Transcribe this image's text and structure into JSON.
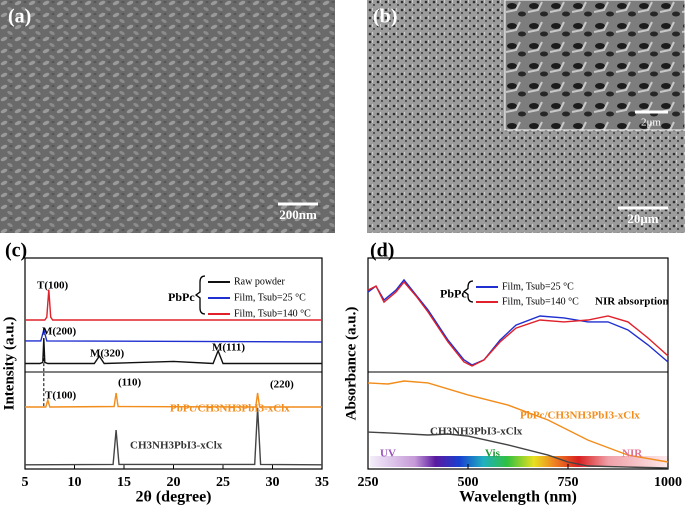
{
  "images": [
    {
      "label": "(a)",
      "scale_bar": "200nm"
    },
    {
      "label": "(b)",
      "scale_bar": "20μm",
      "inset_scale_bar": "2μm"
    }
  ],
  "chart_data": [
    {
      "type": "line",
      "label": "(c)",
      "x_label": "2θ (degree)",
      "y_label": "Intensity (a.u.)",
      "xlim": [
        5,
        35
      ],
      "xticks": [
        5,
        10,
        15,
        20,
        25,
        30,
        35
      ],
      "ylim": [
        0,
        100
      ],
      "legend_title": "PbPc",
      "series": [
        {
          "name": "Raw powder",
          "color": "#111111",
          "x": [
            5,
            6.5,
            6.8,
            6.9,
            7.0,
            7.3,
            12,
            12.5,
            13,
            20,
            24,
            24.5,
            25,
            35
          ],
          "values": [
            50,
            50,
            50.5,
            62,
            50.5,
            50,
            50,
            53.5,
            50,
            51,
            50,
            56,
            50,
            50
          ]
        },
        {
          "name": "Film, Tsub=25 °C",
          "color": "#1f2fd0",
          "x": [
            5,
            6.6,
            6.9,
            7.2,
            35
          ],
          "values": [
            60.7,
            60.7,
            66,
            60.7,
            60.2
          ]
        },
        {
          "name": "Film, Tsub=140 °C",
          "color": "#e0202a",
          "x": [
            5,
            7.0,
            7.2,
            7.4,
            7.6,
            7.8,
            35
          ],
          "values": [
            70.6,
            70.6,
            72,
            85,
            72,
            70.6,
            70.6
          ]
        },
        {
          "color": "#f28c1a",
          "x": [
            5,
            7.1,
            7.3,
            7.5,
            14,
            14.2,
            14.4,
            28.3,
            28.5,
            28.7,
            35
          ],
          "values": [
            29.4,
            29.4,
            32.7,
            29.4,
            29.6,
            36,
            29.6,
            29.4,
            36,
            29.4,
            29.4
          ]
        },
        {
          "color": "#444444",
          "x": [
            5,
            13.9,
            14.2,
            14.5,
            28.2,
            28.5,
            28.8,
            35
          ],
          "values": [
            2,
            2.2,
            18.5,
            2.2,
            2.2,
            29,
            2.2,
            2
          ]
        }
      ],
      "annotations": [
        "T(100)",
        "M(200)",
        "M(320)",
        "M(111)",
        "(110)",
        "(220)",
        "T(100)",
        "PbPc/CH3NH3PbI3-xClx",
        "CH3NH3PbI3-xClx"
      ]
    },
    {
      "type": "line",
      "label": "(d)",
      "x_label": "Wavelength (nm)",
      "y_label": "Absorbance (a.u.)",
      "xlim": [
        250,
        1000
      ],
      "xticks": [
        250,
        500,
        750,
        1000
      ],
      "ylim": [
        0,
        100
      ],
      "legend_title": "PbPc",
      "series": [
        {
          "name": "Film, Tsub=25 °C",
          "color": "#1f2fd0",
          "x": [
            250,
            270,
            290,
            320,
            340,
            370,
            400,
            450,
            490,
            510,
            540,
            580,
            620,
            680,
            740,
            800,
            850,
            900,
            950,
            1000
          ],
          "values": [
            83.9,
            86.7,
            80.1,
            84.8,
            89.6,
            82.5,
            75.4,
            61.1,
            51.7,
            49.3,
            51.7,
            61.1,
            68.2,
            72.5,
            71.6,
            69.7,
            69.7,
            65.9,
            58.8,
            50.7
          ]
        },
        {
          "name": "Film, Tsub=140 °C",
          "color": "#e0202a",
          "x": [
            250,
            270,
            290,
            320,
            340,
            370,
            400,
            450,
            490,
            510,
            540,
            580,
            620,
            680,
            740,
            800,
            850,
            900,
            950,
            1000
          ],
          "values": [
            84.8,
            86.7,
            79.1,
            83.9,
            88.6,
            82.0,
            74.4,
            60.2,
            50.7,
            48.8,
            51.7,
            60.2,
            66.8,
            70.6,
            69.7,
            70.6,
            72.5,
            69.7,
            62.1,
            53.6
          ]
        },
        {
          "color": "#f28c1a",
          "x": [
            250,
            300,
            340,
            400,
            500,
            600,
            700,
            800,
            900,
            1000
          ],
          "values": [
            40.8,
            40.3,
            41.7,
            40.8,
            35.1,
            30.3,
            23.2,
            13.7,
            6.6,
            3.3
          ]
        },
        {
          "color": "#444444",
          "x": [
            250,
            300,
            400,
            450,
            500,
            600,
            700,
            750,
            800,
            900,
            1000
          ],
          "values": [
            17.5,
            17.1,
            16.1,
            16.6,
            15.6,
            11.4,
            6.6,
            3.3,
            1.4,
            0.9,
            0.5
          ]
        }
      ],
      "annotations": [
        "NIR absorption",
        "PbPc/CH3NH3PbI3-xClx",
        "CH3NH3PbI3-xClx",
        "UV",
        "Vis",
        "NIR"
      ]
    }
  ]
}
